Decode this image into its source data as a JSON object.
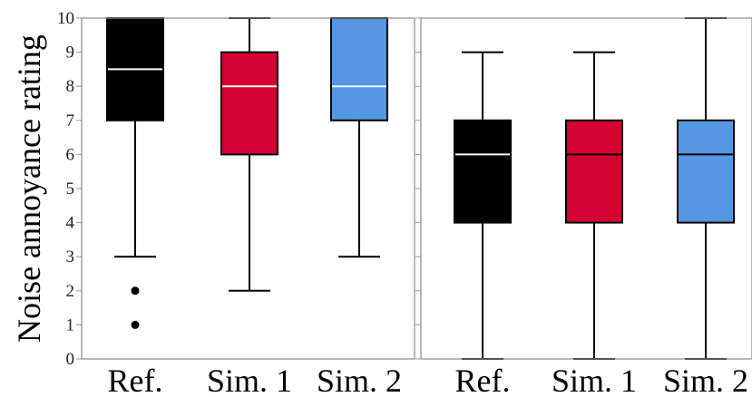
{
  "chart_data": [
    {
      "type": "boxplot",
      "panel": "left",
      "ylabel": "Noise annoyance rating",
      "ylim": [
        0,
        10
      ],
      "yticks": [
        "0",
        "1",
        "2",
        "3",
        "4",
        "5",
        "6",
        "7",
        "8",
        "9",
        "10"
      ],
      "categories": [
        "Ref.",
        "Sim. 1",
        "Sim. 2"
      ],
      "boxes": [
        {
          "category": "Ref.",
          "whisker_low": 3,
          "q1": 7,
          "median": 8.5,
          "q3": 10,
          "whisker_high": 10,
          "outliers": [
            2,
            1
          ],
          "color": "#000000",
          "median_color": "#ffffff"
        },
        {
          "category": "Sim. 1",
          "whisker_low": 2,
          "q1": 6,
          "median": 8,
          "q3": 9,
          "whisker_high": 10,
          "outliers": [],
          "color": "#d40032",
          "median_color": "#ffffff"
        },
        {
          "category": "Sim. 2",
          "whisker_low": 3,
          "q1": 7,
          "median": 8,
          "q3": 10,
          "whisker_high": 10,
          "outliers": [],
          "color": "#5597e3",
          "median_color": "#ffffff"
        }
      ]
    },
    {
      "type": "boxplot",
      "panel": "right",
      "ylim": [
        0,
        10
      ],
      "categories": [
        "Ref.",
        "Sim. 1",
        "Sim. 2"
      ],
      "boxes": [
        {
          "category": "Ref.",
          "whisker_low": 0,
          "q1": 4,
          "median": 6,
          "q3": 7,
          "whisker_high": 9,
          "outliers": [],
          "color": "#000000",
          "median_color": "#ffffff"
        },
        {
          "category": "Sim. 1",
          "whisker_low": 0,
          "q1": 4,
          "median": 6,
          "q3": 7,
          "whisker_high": 9,
          "outliers": [],
          "color": "#d40032",
          "median_color": "#000000"
        },
        {
          "category": "Sim. 2",
          "whisker_low": 0,
          "q1": 4,
          "median": 6,
          "q3": 7,
          "whisker_high": 10,
          "outliers": [],
          "color": "#5597e3",
          "median_color": "#000000"
        }
      ]
    }
  ]
}
